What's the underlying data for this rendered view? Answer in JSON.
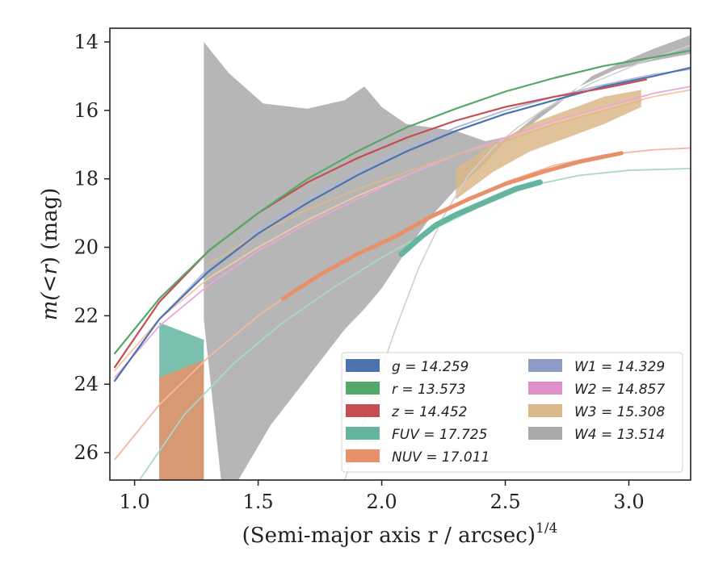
{
  "chart_data": {
    "type": "line",
    "title": "",
    "xlabel": "(Semi-major axis r / arcsec)",
    "xlabel_superscript": "1/4",
    "ylabel_parts": [
      "m(",
      "<",
      "r",
      ") (mag)"
    ],
    "xlim": [
      0.9,
      3.25
    ],
    "ylim": [
      26.8,
      13.6
    ],
    "y_inverted": true,
    "xticks": [
      1.0,
      1.5,
      2.0,
      2.5,
      3.0
    ],
    "xtick_labels": [
      "1.0",
      "1.5",
      "2.0",
      "2.5",
      "3.0"
    ],
    "yticks": [
      14,
      16,
      18,
      20,
      22,
      24,
      26
    ],
    "ytick_labels": [
      "14",
      "16",
      "18",
      "20",
      "22",
      "24",
      "26"
    ],
    "grid": false,
    "legend_position": "lower-right",
    "legend_columns": 2,
    "legend": [
      {
        "label": "g = 14.259",
        "color": "#4c72b0"
      },
      {
        "label": "r = 13.573",
        "color": "#55a868"
      },
      {
        "label": "z = 14.452",
        "color": "#c44e52"
      },
      {
        "label": "FUV = 17.725",
        "color": "#64b5a0"
      },
      {
        "label": "NUV = 17.011",
        "color": "#e8906a"
      },
      {
        "label": "W1 = 14.329",
        "color": "#8c9cc4"
      },
      {
        "label": "W2 = 14.857",
        "color": "#dc8fc8"
      },
      {
        "label": "W3 = 15.308",
        "color": "#dcb98a"
      },
      {
        "label": "W4 = 13.514",
        "color": "#a9a9a9"
      }
    ],
    "series": [
      {
        "color": "#a9a9a9",
        "kind": "band",
        "x": [
          1.28,
          1.28,
          1.38,
          1.52,
          1.7,
          1.85,
          1.93,
          2.0,
          2.1,
          2.2,
          2.3,
          2.42,
          2.55,
          2.7,
          2.85,
          3.0,
          3.1,
          3.25,
          3.25,
          3.1,
          2.95,
          2.8,
          2.65,
          2.5,
          2.4,
          2.3,
          2.2,
          2.1,
          2.0,
          1.93,
          1.85,
          1.7,
          1.55,
          1.42,
          1.35
        ],
        "y": [
          22.1,
          14.0,
          14.9,
          15.8,
          15.95,
          15.7,
          15.3,
          15.9,
          16.4,
          16.5,
          16.6,
          16.9,
          16.7,
          15.9,
          15.0,
          14.5,
          14.2,
          13.8,
          14.35,
          14.55,
          14.8,
          15.3,
          16.0,
          16.9,
          17.7,
          18.3,
          19.1,
          20.1,
          21.2,
          21.8,
          22.4,
          23.8,
          25.2,
          26.8,
          26.8
        ]
      },
      {
        "color": "#dcb98a",
        "kind": "band",
        "x": [
          2.3,
          2.45,
          2.6,
          2.75,
          2.9,
          3.05,
          3.05,
          2.9,
          2.75,
          2.6,
          2.45,
          2.3
        ],
        "y": [
          18.6,
          17.8,
          17.2,
          16.8,
          16.4,
          15.9,
          15.4,
          15.6,
          16.0,
          16.4,
          17.0,
          17.7
        ]
      },
      {
        "color": "#64b5a0",
        "kind": "band",
        "x": [
          1.1,
          1.28,
          1.28,
          1.1
        ],
        "y": [
          22.2,
          22.7,
          26.8,
          26.8
        ]
      },
      {
        "color": "#e8906a",
        "kind": "band",
        "x": [
          1.1,
          1.28,
          1.28,
          1.1
        ],
        "y": [
          23.8,
          23.3,
          26.8,
          26.8
        ]
      },
      {
        "color": "#d0d0d0",
        "kind": "line",
        "width": 1.6,
        "x": [
          1.85,
          1.95,
          2.05,
          2.15,
          2.25,
          2.35,
          2.45,
          2.55,
          2.65,
          2.75,
          2.85,
          2.95,
          3.05,
          3.15,
          3.25
        ],
        "y": [
          26.8,
          24.6,
          22.5,
          20.6,
          19.1,
          17.9,
          17.1,
          16.5,
          16.0,
          15.6,
          15.2,
          14.9,
          14.6,
          14.35,
          14.1
        ]
      },
      {
        "color": "#a8d8c8",
        "kind": "line",
        "width": 1.8,
        "x": [
          1.02,
          1.2,
          1.4,
          1.6,
          1.8,
          2.0,
          2.2,
          2.4,
          2.6,
          2.8,
          3.0,
          3.25
        ],
        "y": [
          26.8,
          24.9,
          23.4,
          22.2,
          21.2,
          20.3,
          19.5,
          18.8,
          18.2,
          17.9,
          17.75,
          17.7
        ]
      },
      {
        "color": "#f2b9a2",
        "kind": "line",
        "width": 1.8,
        "x": [
          0.92,
          1.1,
          1.3,
          1.5,
          1.7,
          1.9,
          2.1,
          2.3,
          2.5,
          2.7,
          2.9,
          3.1,
          3.25
        ],
        "y": [
          26.2,
          24.6,
          23.2,
          22.0,
          21.0,
          20.2,
          19.5,
          18.8,
          18.1,
          17.6,
          17.3,
          17.15,
          17.1
        ]
      },
      {
        "color": "#f5c8a4",
        "kind": "line",
        "width": 1.8,
        "x": [
          0.92,
          1.1,
          1.3,
          1.5,
          1.7,
          1.9,
          2.1,
          2.3,
          2.5,
          2.7,
          2.9,
          3.1,
          3.25
        ],
        "y": [
          23.6,
          22.1,
          20.9,
          20.0,
          19.2,
          18.5,
          17.9,
          17.3,
          16.8,
          16.35,
          15.95,
          15.6,
          15.4
        ]
      },
      {
        "color": "#e8a8d8",
        "kind": "line",
        "width": 1.8,
        "x": [
          0.92,
          1.1,
          1.3,
          1.5,
          1.7,
          1.9,
          2.1,
          2.3,
          2.5,
          2.7,
          2.9,
          3.1,
          3.25
        ],
        "y": [
          23.8,
          22.3,
          21.1,
          20.1,
          19.3,
          18.6,
          17.9,
          17.3,
          16.8,
          16.3,
          15.9,
          15.5,
          15.3
        ]
      },
      {
        "color": "#a9b7d8",
        "kind": "line",
        "width": 1.8,
        "x": [
          0.92,
          1.1,
          1.3,
          1.5,
          1.7,
          1.9,
          2.1,
          2.3,
          2.5,
          2.7,
          2.9,
          3.1,
          3.25
        ],
        "y": [
          23.9,
          22.1,
          20.6,
          19.5,
          18.6,
          17.8,
          17.1,
          16.5,
          16.0,
          15.6,
          15.25,
          14.95,
          14.8
        ]
      },
      {
        "color": "#64b5a0",
        "kind": "line",
        "width": 7,
        "x": [
          2.08,
          2.15,
          2.22,
          2.3,
          2.38,
          2.46,
          2.54,
          2.64
        ],
        "y": [
          20.2,
          19.75,
          19.35,
          19.05,
          18.8,
          18.55,
          18.3,
          18.1
        ]
      },
      {
        "color": "#e8906a",
        "kind": "line",
        "width": 5,
        "x": [
          1.6,
          1.75,
          1.9,
          2.05,
          2.2,
          2.35,
          2.5,
          2.65,
          2.8,
          2.97
        ],
        "y": [
          21.5,
          20.8,
          20.2,
          19.7,
          19.1,
          18.6,
          18.15,
          17.8,
          17.5,
          17.25
        ]
      },
      {
        "color": "#dcb98a",
        "kind": "line",
        "width": 1.8,
        "x": [
          1.3,
          1.5,
          1.7,
          1.9,
          2.1,
          2.3,
          2.5,
          2.7,
          2.9,
          3.05
        ],
        "y": [
          20.5,
          19.6,
          18.9,
          18.3,
          17.8,
          17.3,
          16.9,
          16.4,
          16.0,
          15.7
        ]
      },
      {
        "color": "#4c72b0",
        "kind": "line",
        "width": 2.2,
        "x": [
          0.92,
          1.1,
          1.3,
          1.5,
          1.7,
          1.9,
          2.1,
          2.3,
          2.5,
          2.7,
          2.9,
          3.1,
          3.25
        ],
        "y": [
          23.9,
          22.1,
          20.7,
          19.6,
          18.7,
          17.9,
          17.2,
          16.6,
          16.1,
          15.7,
          15.3,
          15.0,
          14.75
        ]
      },
      {
        "color": "#c44e52",
        "kind": "line",
        "width": 2.2,
        "x": [
          0.92,
          1.1,
          1.3,
          1.5,
          1.7,
          1.9,
          2.1,
          2.3,
          2.5,
          2.7,
          2.9,
          3.07
        ],
        "y": [
          23.5,
          21.6,
          20.1,
          19.0,
          18.1,
          17.4,
          16.8,
          16.3,
          15.9,
          15.6,
          15.35,
          15.1
        ]
      },
      {
        "color": "#55a868",
        "kind": "line",
        "width": 2.2,
        "x": [
          0.92,
          1.1,
          1.3,
          1.5,
          1.7,
          1.9,
          2.1,
          2.3,
          2.5,
          2.7,
          2.9,
          3.1,
          3.25
        ],
        "y": [
          23.1,
          21.5,
          20.1,
          19.0,
          18.0,
          17.2,
          16.5,
          15.95,
          15.45,
          15.05,
          14.7,
          14.45,
          14.25
        ]
      }
    ]
  }
}
